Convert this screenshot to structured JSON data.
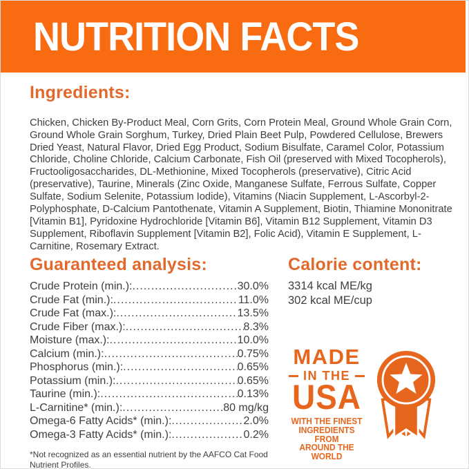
{
  "colors": {
    "banner": "#F86B10",
    "heading": "#E0692B",
    "badge": "#E7661D",
    "text": "#3E3E3E"
  },
  "header": {
    "title": "NUTRITION FACTS"
  },
  "ingredients": {
    "heading": "Ingredients:",
    "text": "Chicken, Chicken By-Product Meal, Corn Grits, Corn Protein Meal, Ground Whole Grain Corn, Ground Whole Grain Sorghum, Turkey, Dried Plain Beet Pulp, Powdered Cellulose, Brewers Dried Yeast, Natural Flavor, Dried Egg Product, Sodium Bisulfate, Caramel Color, Potassium Chloride, Choline Chloride, Calcium Carbonate, Fish Oil (preserved with Mixed Tocopherols), Fructooligosaccharides, DL-Methionine, Mixed Tocopherols (preservative), Citric Acid (preservative), Taurine, Minerals (Zinc Oxide, Manganese Sulfate, Ferrous Sulfate, Copper Sulfate, Sodium Selenite, Potassium Iodide), Vitamins (Niacin Supplement, L-Ascorbyl-2-Polyphosphate, D-Calcium Pantothenate, Vitamin A Supplement, Biotin, Thiamine Mononitrate [Vitamin B1], Pyridoxine Hydrochloride [Vitamin B6], Vitamin B12 Supplement, Vitamin D3 Supplement, Riboflavin Supplement [Vitamin B2], Folic Acid), Vitamin E Supplement, L-Carnitine, Rosemary Extract."
  },
  "guaranteed_analysis": {
    "heading": "Guaranteed analysis:",
    "rows": [
      {
        "label": "Crude Protein (min.):",
        "value": "30.0%"
      },
      {
        "label": "Crude Fat (min.):",
        "value": "11.0%"
      },
      {
        "label": "Crude Fat (max.):",
        "value": "13.5%"
      },
      {
        "label": "Crude Fiber (max.):",
        "value": "8.3%"
      },
      {
        "label": "Moisture (max.):",
        "value": "10.0%"
      },
      {
        "label": "Calcium (min.):",
        "value": "0.75%"
      },
      {
        "label": "Phosphorus (min.):",
        "value": "0.65%"
      },
      {
        "label": "Potassium (min.):",
        "value": "0.65%"
      },
      {
        "label": "Taurine (min.):",
        "value": "0.13%"
      },
      {
        "label": "L-Carnitine* (min.):",
        "value": "80 mg/kg"
      },
      {
        "label": "Omega-6 Fatty Acids* (min.):",
        "value": "2.0%"
      },
      {
        "label": "Omega-3 Fatty Acids* (min.):",
        "value": "0.2%"
      }
    ]
  },
  "calorie_content": {
    "heading": "Calorie content:",
    "lines": [
      "3314 kcal ME/kg",
      "302 kcal ME/cup"
    ]
  },
  "made_in_usa": {
    "made": "MADE",
    "in_the": "IN THE",
    "usa": "USA",
    "tagline_lines": [
      "WITH THE FINEST",
      "INGREDIENTS FROM",
      "AROUND THE WORLD"
    ],
    "icon": "award-ribbon-star-icon"
  },
  "footnote": "*Not recognized as an essential nutrient by the AAFCO Cat Food Nutrient Profiles."
}
